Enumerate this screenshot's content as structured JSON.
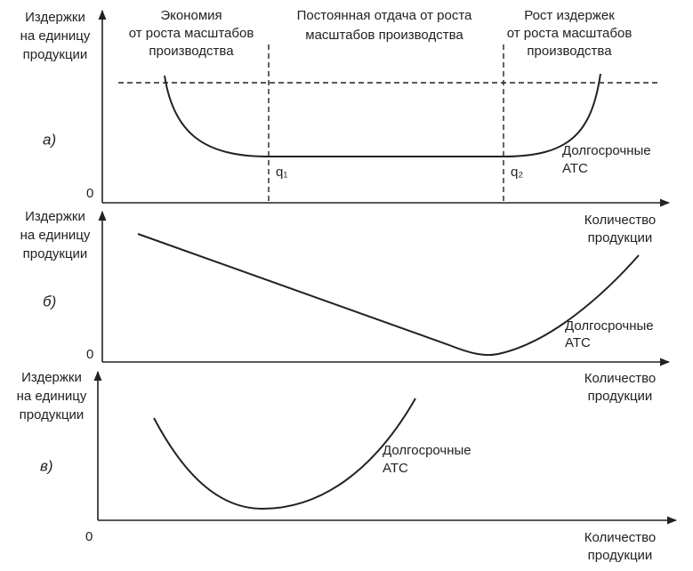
{
  "panels": [
    {
      "y_label": [
        "Издержки",
        "на единицу",
        "продукции"
      ],
      "letter": "а)",
      "zero": "0",
      "x_label": [
        "Количество",
        "продукции"
      ],
      "curve_label": [
        "Долгосрочные",
        "АТС"
      ],
      "regions": [
        [
          "Экономия",
          "от роста масштабов",
          "производства"
        ],
        [
          "Постоянная отдача от роста",
          "масштабов производства"
        ],
        [
          "Рост издержек",
          "от роста масштабов",
          "производства"
        ]
      ],
      "q_labels": [
        "q₁",
        "q₂"
      ]
    },
    {
      "y_label": [
        "Издержки",
        "на единицу",
        "продукции"
      ],
      "letter": "б)",
      "zero": "0",
      "x_label": [
        "Количество",
        "продукции"
      ],
      "curve_label": [
        "Долгосрочные",
        "АТС"
      ]
    },
    {
      "y_label": [
        "Издержки",
        "на единицу",
        "продукции"
      ],
      "letter": "в)",
      "zero": "0",
      "x_label": [
        "Количество",
        "продукции"
      ],
      "curve_label": [
        "Долгосрочные",
        "АТС"
      ]
    }
  ]
}
